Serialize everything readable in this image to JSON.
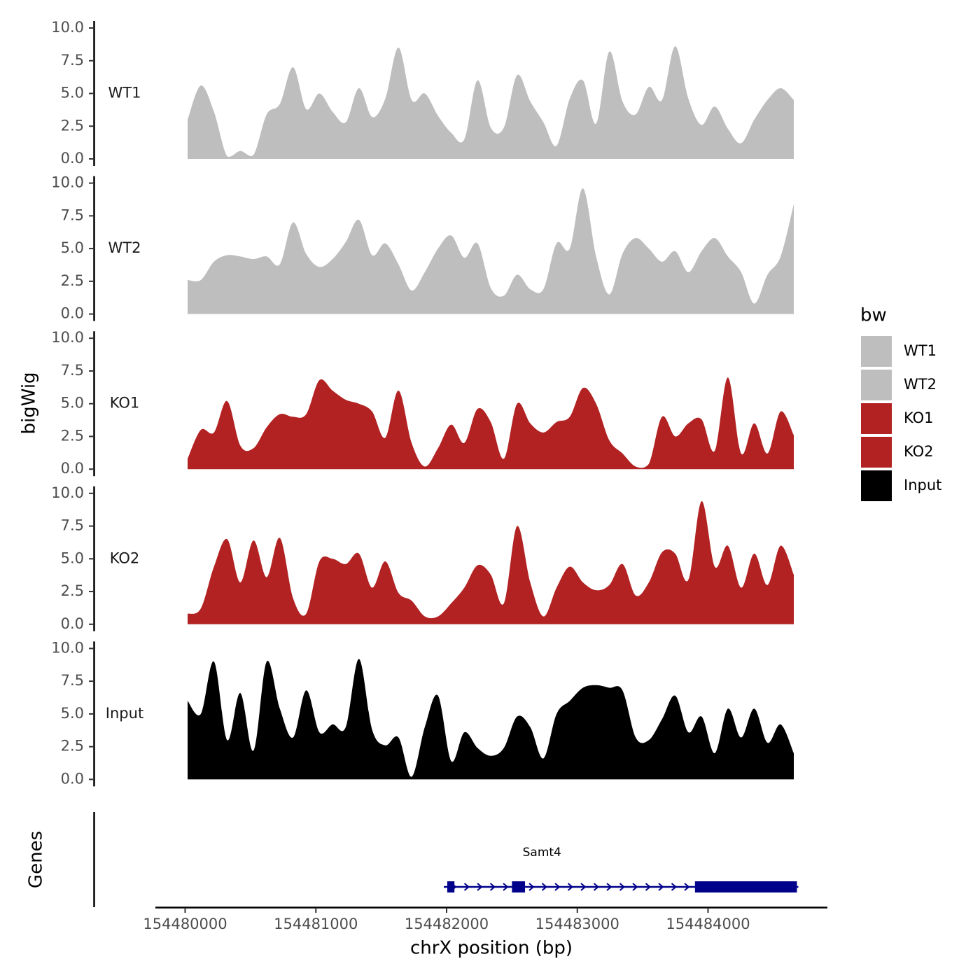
{
  "chart_data": {
    "type": "area",
    "x": [
      154480000,
      154480100,
      154480200,
      154480300,
      154480400,
      154480500,
      154480600,
      154480700,
      154480800,
      154480900,
      154481000,
      154481100,
      154481200,
      154481300,
      154481400,
      154481500,
      154481600,
      154481700,
      154481800,
      154481900,
      154482000,
      154482100,
      154482200,
      154482300,
      154482400,
      154482500,
      154482600,
      154482700,
      154482800,
      154482900,
      154483000,
      154483100,
      154483200,
      154483300,
      154483400,
      154483500,
      154483600,
      154483700,
      154483800,
      154483900,
      154484000,
      154484100,
      154484200,
      154484300,
      154484400,
      154484500,
      154484600
    ],
    "xlim": [
      154479800,
      154484900
    ],
    "ylim": [
      0,
      10
    ],
    "yticks": [
      0.0,
      2.5,
      5.0,
      7.5,
      10.0
    ],
    "ytick_labels": [
      "0.0",
      "2.5",
      "5.0",
      "7.5",
      "10.0"
    ],
    "xticks": [
      154480000,
      154481000,
      154482000,
      154483000,
      154484000
    ],
    "xtick_labels": [
      "154480000",
      "154481000",
      "154482000",
      "154483000",
      "154484000"
    ],
    "xlabel": "chrX position (bp)",
    "ylabel": "bigWig",
    "genes_label": "Genes",
    "series": [
      {
        "name": "WT1",
        "color": "#bebebe",
        "values": [
          3.0,
          5.6,
          3.6,
          0.2,
          0.6,
          0.3,
          3.4,
          4.2,
          7.0,
          3.8,
          5.0,
          3.6,
          2.8,
          5.4,
          3.2,
          4.6,
          8.5,
          4.5,
          5.0,
          3.3,
          2.0,
          1.5,
          6.0,
          2.4,
          2.4,
          6.4,
          4.4,
          2.8,
          1.0,
          4.6,
          6.0,
          2.7,
          8.2,
          4.4,
          3.4,
          5.5,
          4.5,
          8.6,
          4.6,
          2.6,
          4.0,
          2.3,
          1.2,
          3.0,
          4.5,
          5.4,
          4.5
        ]
      },
      {
        "name": "WT2",
        "color": "#bebebe",
        "values": [
          2.6,
          2.6,
          4.0,
          4.5,
          4.4,
          4.2,
          4.4,
          3.8,
          7.0,
          4.6,
          3.6,
          4.2,
          5.5,
          7.2,
          4.5,
          5.4,
          3.8,
          1.8,
          3.2,
          5.0,
          6.0,
          4.3,
          5.4,
          2.0,
          1.4,
          3.0,
          1.9,
          1.9,
          5.4,
          5.0,
          9.6,
          4.4,
          1.5,
          4.6,
          5.8,
          5.0,
          4.0,
          4.8,
          3.2,
          4.8,
          5.8,
          4.4,
          3.2,
          0.8,
          3.0,
          4.4,
          8.4
        ]
      },
      {
        "name": "KO1",
        "color": "#b22222",
        "values": [
          0.8,
          3.0,
          2.8,
          5.2,
          1.8,
          1.6,
          3.2,
          4.2,
          4.0,
          4.2,
          6.8,
          6.0,
          5.3,
          5.0,
          4.4,
          2.4,
          6.0,
          2.0,
          0.2,
          1.6,
          3.4,
          2.0,
          4.6,
          3.6,
          0.8,
          5.0,
          3.5,
          2.8,
          3.6,
          4.0,
          6.2,
          5.0,
          2.2,
          1.2,
          0.2,
          0.4,
          4.0,
          2.5,
          3.5,
          3.8,
          1.4,
          7.0,
          1.2,
          3.5,
          1.2,
          4.4,
          2.6
        ]
      },
      {
        "name": "KO2",
        "color": "#b22222",
        "values": [
          0.8,
          1.2,
          4.4,
          6.5,
          3.2,
          6.4,
          3.6,
          6.6,
          2.0,
          0.8,
          4.8,
          5.0,
          4.6,
          5.4,
          2.8,
          4.8,
          2.4,
          1.8,
          0.6,
          0.6,
          1.6,
          2.8,
          4.5,
          3.8,
          1.6,
          7.5,
          3.2,
          0.6,
          2.8,
          4.4,
          3.2,
          2.6,
          3.0,
          4.6,
          2.2,
          3.2,
          5.5,
          5.4,
          3.4,
          9.4,
          4.4,
          6.0,
          2.8,
          5.4,
          3.0,
          6.0,
          3.8
        ]
      },
      {
        "name": "Input",
        "color": "#000000",
        "values": [
          6.0,
          5.0,
          9.0,
          3.0,
          6.6,
          2.2,
          9.0,
          5.4,
          3.2,
          6.8,
          3.6,
          4.2,
          4.0,
          9.2,
          3.8,
          2.6,
          3.2,
          0.2,
          4.0,
          6.4,
          1.4,
          3.6,
          2.4,
          1.8,
          2.4,
          4.8,
          4.0,
          1.6,
          5.0,
          6.0,
          7.0,
          7.2,
          7.0,
          6.8,
          3.2,
          3.0,
          4.6,
          6.4,
          3.6,
          4.8,
          2.0,
          5.4,
          3.2,
          5.4,
          2.8,
          4.2,
          2.0
        ]
      }
    ],
    "legend": {
      "title": "bw",
      "position": "right",
      "entries": [
        {
          "name": "WT1",
          "color": "#bebebe"
        },
        {
          "name": "WT2",
          "color": "#bebebe"
        },
        {
          "name": "KO1",
          "color": "#b22222"
        },
        {
          "name": "KO2",
          "color": "#b22222"
        },
        {
          "name": "Input",
          "color": "#000000"
        }
      ]
    },
    "gene": {
      "name": "Samt4",
      "strand": "+",
      "color": "#00008b",
      "start": 154482000,
      "end": 154484680,
      "exons": [
        [
          154482005,
          154482060
        ],
        [
          154482500,
          154482600
        ],
        [
          154483900,
          154484680
        ]
      ]
    }
  }
}
